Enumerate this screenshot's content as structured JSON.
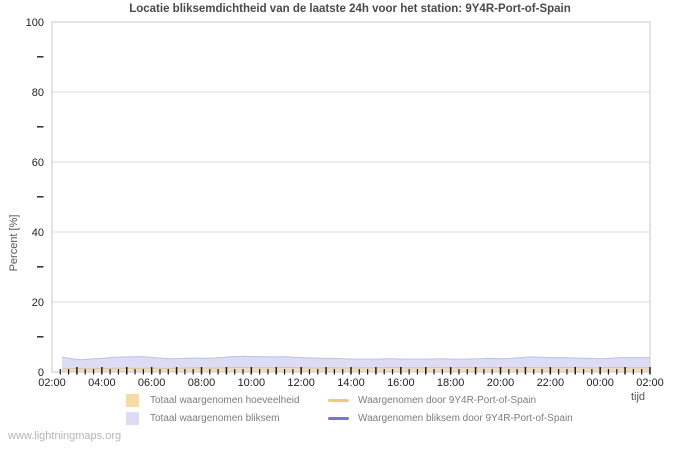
{
  "watermark": "www.lightningmaps.org",
  "chart_data": {
    "type": "area",
    "title": "Locatie bliksemdichtheid van de laatste 24h voor het station: 9Y4R-Port-of-Spain",
    "ylabel": "Percent  [%]",
    "xlabel": "tijd",
    "ylim": [
      0,
      100
    ],
    "grid": true,
    "legend_position": "bottom",
    "x_tick_labels": [
      "02:00",
      "04:00",
      "06:00",
      "08:00",
      "10:00",
      "12:00",
      "14:00",
      "16:00",
      "18:00",
      "20:00",
      "22:00",
      "00:00",
      "02:00"
    ],
    "x_span_hours": 24,
    "x_minor_tick_minutes": 20,
    "y_ticks": [
      0,
      20,
      40,
      60,
      80,
      100
    ],
    "y_minor_ticks": [
      10,
      30,
      50,
      70,
      90
    ],
    "draw_order": [
      1,
      0,
      2,
      3
    ],
    "series": [
      {
        "name": "Totaal waargenomen hoeveelheid",
        "kind": "area",
        "fill": "#f7dba6",
        "stroke": "#dfc3a4",
        "fill_opacity": 0.65,
        "points": [
          [
            0.4,
            0.9
          ],
          [
            1.0,
            1.0
          ],
          [
            1.6,
            0.9
          ],
          [
            2.2,
            1.0
          ],
          [
            2.8,
            1.1
          ],
          [
            3.4,
            1.0
          ],
          [
            4.0,
            1.1
          ],
          [
            4.6,
            1.0
          ],
          [
            5.2,
            1.1
          ],
          [
            5.8,
            1.2
          ],
          [
            6.4,
            1.1
          ],
          [
            7.0,
            1.2
          ],
          [
            7.6,
            1.3
          ],
          [
            8.2,
            1.2
          ],
          [
            8.8,
            1.2
          ],
          [
            9.4,
            1.3
          ],
          [
            10.0,
            1.2
          ],
          [
            10.6,
            1.1
          ],
          [
            11.2,
            1.2
          ],
          [
            11.8,
            1.1
          ],
          [
            12.4,
            1.2
          ],
          [
            13.0,
            1.2
          ],
          [
            13.6,
            1.3
          ],
          [
            14.2,
            1.2
          ],
          [
            14.8,
            1.2
          ],
          [
            15.4,
            1.3
          ],
          [
            16.0,
            1.2
          ],
          [
            16.6,
            1.3
          ],
          [
            17.2,
            1.2
          ],
          [
            17.8,
            1.3
          ],
          [
            18.4,
            1.2
          ],
          [
            19.0,
            1.3
          ],
          [
            19.6,
            1.2
          ],
          [
            20.2,
            1.2
          ],
          [
            20.8,
            1.3
          ],
          [
            21.4,
            1.2
          ],
          [
            22.0,
            1.2
          ],
          [
            22.6,
            1.3
          ],
          [
            23.2,
            1.2
          ],
          [
            23.8,
            1.2
          ],
          [
            24.0,
            1.2
          ]
        ]
      },
      {
        "name": "Totaal waargenomen bliksem",
        "kind": "area",
        "fill": "#dcdcf5",
        "stroke": "#c0c0e6",
        "fill_opacity": 1,
        "points": [
          [
            0.4,
            4.2
          ],
          [
            0.7,
            3.9
          ],
          [
            1.1,
            3.5
          ],
          [
            1.5,
            3.7
          ],
          [
            2.0,
            3.9
          ],
          [
            2.5,
            4.2
          ],
          [
            3.0,
            4.3
          ],
          [
            3.4,
            4.4
          ],
          [
            3.8,
            4.3
          ],
          [
            4.1,
            4.1
          ],
          [
            4.5,
            3.9
          ],
          [
            4.9,
            3.8
          ],
          [
            5.3,
            3.9
          ],
          [
            5.7,
            4.0
          ],
          [
            6.1,
            3.9
          ],
          [
            6.5,
            4.0
          ],
          [
            6.9,
            4.2
          ],
          [
            7.3,
            4.4
          ],
          [
            7.7,
            4.5
          ],
          [
            8.1,
            4.4
          ],
          [
            8.5,
            4.4
          ],
          [
            8.9,
            4.3
          ],
          [
            9.3,
            4.4
          ],
          [
            9.7,
            4.2
          ],
          [
            10.1,
            4.1
          ],
          [
            10.5,
            4.0
          ],
          [
            10.9,
            3.9
          ],
          [
            11.3,
            3.9
          ],
          [
            11.7,
            3.8
          ],
          [
            12.1,
            3.7
          ],
          [
            12.6,
            3.7
          ],
          [
            13.1,
            3.7
          ],
          [
            13.6,
            3.8
          ],
          [
            14.1,
            3.7
          ],
          [
            14.6,
            3.7
          ],
          [
            15.1,
            3.7
          ],
          [
            15.6,
            3.8
          ],
          [
            16.1,
            3.7
          ],
          [
            16.6,
            3.7
          ],
          [
            17.1,
            3.8
          ],
          [
            17.6,
            3.9
          ],
          [
            18.0,
            3.8
          ],
          [
            18.4,
            3.9
          ],
          [
            18.8,
            4.1
          ],
          [
            19.2,
            4.3
          ],
          [
            19.6,
            4.2
          ],
          [
            20.0,
            4.1
          ],
          [
            20.5,
            4.1
          ],
          [
            21.0,
            4.0
          ],
          [
            21.5,
            3.9
          ],
          [
            22.0,
            3.8
          ],
          [
            22.4,
            3.9
          ],
          [
            22.8,
            4.1
          ],
          [
            23.2,
            4.1
          ],
          [
            23.6,
            4.1
          ],
          [
            24.0,
            4.1
          ]
        ]
      },
      {
        "name": "Waargenomen door 9Y4R-Port-of-Spain",
        "kind": "line",
        "stroke": "#f0c87e",
        "points": []
      },
      {
        "name": "Waargenomen bliksem door 9Y4R-Port-of-Spain",
        "kind": "line",
        "stroke": "#7878c8",
        "points": []
      }
    ]
  }
}
